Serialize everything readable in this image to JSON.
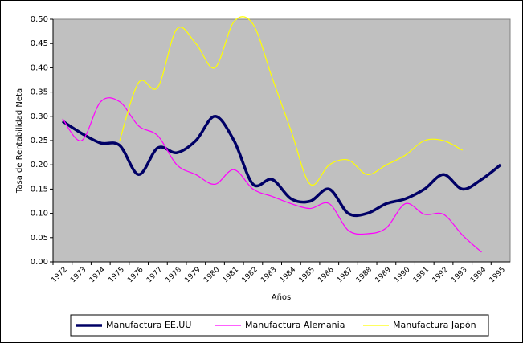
{
  "chart_data": {
    "type": "line",
    "ylabel": "Tasa de Rentabilidad Neta",
    "xlabel": "Años",
    "categories": [
      "1972",
      "1973",
      "1974",
      "1975",
      "1976",
      "1977",
      "1978",
      "1979",
      "1980",
      "1981",
      "1982",
      "1983",
      "1984",
      "1985",
      "1986",
      "1987",
      "1988",
      "1989",
      "1990",
      "1991",
      "1992",
      "1993",
      "1994",
      "1995"
    ],
    "series": [
      {
        "name": "Manufactura EE.UU",
        "color": "#000066",
        "width": 3.5,
        "values": [
          0.29,
          0.265,
          0.245,
          0.24,
          0.18,
          0.235,
          0.225,
          0.25,
          0.3,
          0.25,
          0.16,
          0.17,
          0.13,
          0.125,
          0.15,
          0.1,
          0.1,
          0.12,
          0.13,
          0.15,
          0.18,
          0.15,
          0.17,
          0.2
        ]
      },
      {
        "name": "Manufactura Alemania",
        "color": "#ff00ff",
        "width": 1.2,
        "values": [
          0.295,
          0.25,
          0.33,
          0.33,
          0.28,
          0.26,
          0.2,
          0.18,
          0.16,
          0.19,
          0.15,
          0.135,
          0.12,
          0.11,
          0.12,
          0.065,
          0.058,
          0.07,
          0.12,
          0.098,
          0.098,
          0.055,
          0.02,
          null
        ]
      },
      {
        "name": "Manufactura Japón",
        "color": "#ffff00",
        "width": 1.2,
        "values": [
          null,
          null,
          null,
          0.25,
          0.37,
          0.36,
          0.48,
          0.45,
          0.4,
          0.495,
          0.49,
          0.38,
          0.27,
          0.16,
          0.2,
          0.21,
          0.18,
          0.2,
          0.22,
          0.25,
          0.25,
          0.23,
          null,
          null
        ]
      }
    ],
    "ylim": [
      0,
      0.5
    ],
    "yticks": [
      {
        "value": 0,
        "label": "0.00"
      },
      {
        "value": 0.05,
        "label": "0.05"
      },
      {
        "value": 0.1,
        "label": "0.10"
      },
      {
        "value": 0.15,
        "label": "0.15"
      },
      {
        "value": 0.2,
        "label": "0.20"
      },
      {
        "value": 0.25,
        "label": "0.25"
      },
      {
        "value": 0.3,
        "label": "0.30"
      },
      {
        "value": 0.35,
        "label": "0.35"
      },
      {
        "value": 0.4,
        "label": "0.40"
      },
      {
        "value": 0.45,
        "label": "0.45"
      },
      {
        "value": 0.5,
        "label": "0.50"
      }
    ],
    "plot_background": "#c0c0c0",
    "legend": "bottom"
  }
}
